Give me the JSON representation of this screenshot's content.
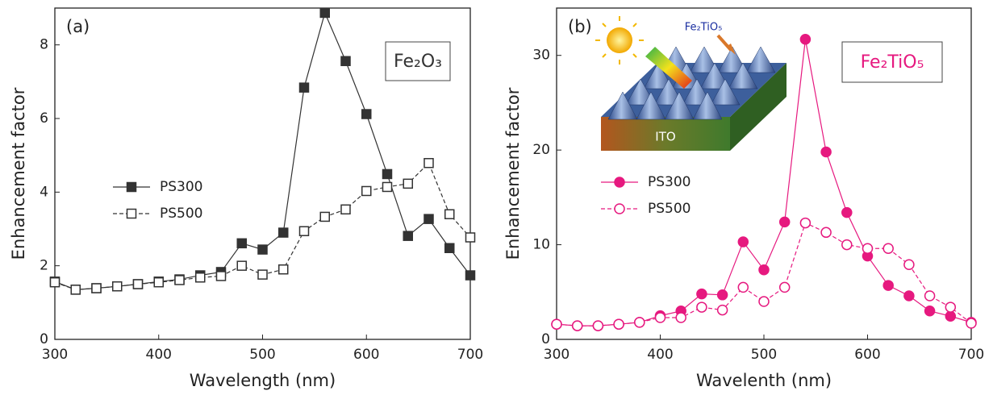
{
  "chart_data": [
    {
      "type": "line",
      "panel_label": "(a)",
      "annotation": "Fe₂O₃",
      "xlabel": "Wavelength (nm)",
      "ylabel": "Enhancement factor",
      "x": [
        300,
        320,
        340,
        360,
        380,
        400,
        420,
        440,
        460,
        480,
        500,
        520,
        540,
        560,
        580,
        600,
        620,
        640,
        660,
        680,
        700
      ],
      "xlim": [
        300,
        700
      ],
      "xticks": [
        300,
        400,
        500,
        600,
        700
      ],
      "ylim": [
        0,
        9
      ],
      "yticks": [
        0,
        2,
        4,
        6,
        8
      ],
      "series": [
        {
          "name": "PS300",
          "color": "#333333",
          "marker": "square",
          "marker_fill": "filled",
          "line_style": "solid",
          "values": [
            1.57,
            1.35,
            1.39,
            1.44,
            1.5,
            1.57,
            1.63,
            1.74,
            1.83,
            2.61,
            2.44,
            2.9,
            6.84,
            8.87,
            7.56,
            6.12,
            4.49,
            2.81,
            3.27,
            2.48,
            1.74
          ]
        },
        {
          "name": "PS500",
          "color": "#333333",
          "marker": "square",
          "marker_fill": "open",
          "line_style": "dashed",
          "values": [
            1.55,
            1.35,
            1.39,
            1.44,
            1.5,
            1.55,
            1.61,
            1.68,
            1.72,
            2.0,
            1.76,
            1.9,
            2.94,
            3.33,
            3.53,
            4.03,
            4.14,
            4.23,
            4.79,
            3.4,
            2.77
          ]
        }
      ]
    },
    {
      "type": "line",
      "panel_label": "(b)",
      "annotation": "Fe₂TiO₅",
      "inset_labels": [
        "Fe₂TiO₅",
        "ITO"
      ],
      "xlabel": "Wavelenth (nm)",
      "ylabel": "Enhancement factor",
      "x": [
        300,
        320,
        340,
        360,
        380,
        400,
        420,
        440,
        460,
        480,
        500,
        520,
        540,
        560,
        580,
        600,
        620,
        640,
        660,
        680,
        700
      ],
      "xlim": [
        300,
        700
      ],
      "xticks": [
        300,
        400,
        500,
        600,
        700
      ],
      "ylim": [
        0,
        35
      ],
      "yticks": [
        0,
        10,
        20,
        30
      ],
      "series": [
        {
          "name": "PS300",
          "color": "#e6197f",
          "marker": "circle",
          "marker_fill": "filled",
          "line_style": "solid",
          "values": [
            1.6,
            1.44,
            1.44,
            1.6,
            1.8,
            2.5,
            3.0,
            4.8,
            4.7,
            10.3,
            7.35,
            12.4,
            31.7,
            19.8,
            13.4,
            8.8,
            5.7,
            4.6,
            3.0,
            2.45,
            1.8
          ]
        },
        {
          "name": "PS500",
          "color": "#e6197f",
          "marker": "circle",
          "marker_fill": "open",
          "line_style": "dashed",
          "values": [
            1.6,
            1.44,
            1.44,
            1.6,
            1.8,
            2.3,
            2.3,
            3.4,
            3.1,
            5.5,
            4.0,
            5.5,
            12.3,
            11.3,
            10.0,
            9.6,
            9.6,
            7.9,
            4.6,
            3.4,
            1.7
          ]
        }
      ]
    }
  ]
}
